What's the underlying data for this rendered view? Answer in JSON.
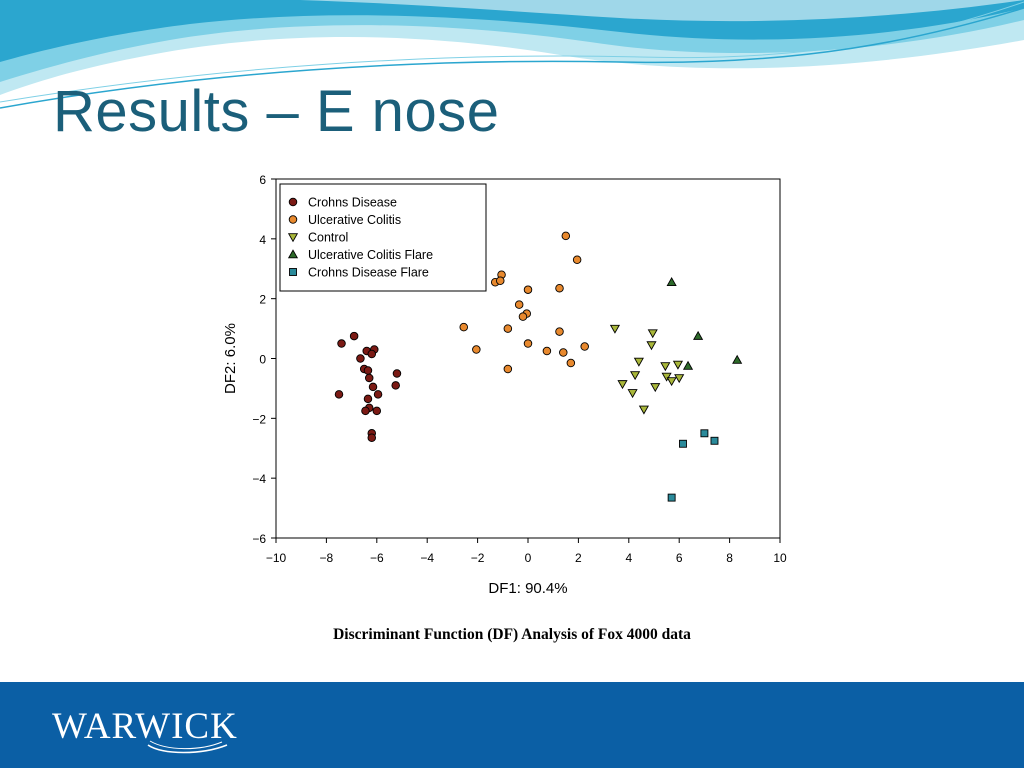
{
  "slide": {
    "title": "Results – E nose",
    "caption": "Discriminant Function (DF) Analysis of Fox 4000 data",
    "footer_logo_text": "WARWICK",
    "colors": {
      "title": "#1b5f7a",
      "footer": "#0b5fa5",
      "swoosh_light": "#bfe8f2",
      "swoosh_dark": "#2ba6cf"
    }
  },
  "chart_data": {
    "type": "scatter",
    "title": "",
    "xlabel": "DF1: 90.4%",
    "ylabel": "DF2: 6.0%",
    "xlim": [
      -10,
      10
    ],
    "ylim": [
      -6,
      6
    ],
    "xticks": [
      -10,
      -8,
      -6,
      -4,
      -2,
      0,
      2,
      4,
      6,
      8,
      10
    ],
    "yticks": [
      -6,
      -4,
      -2,
      0,
      2,
      4,
      6
    ],
    "grid": false,
    "legend_position": "top-left",
    "series": [
      {
        "name": "Crohns Disease",
        "marker": "circle",
        "color": "#7b1a14",
        "points": [
          [
            -7.4,
            0.5
          ],
          [
            -6.9,
            0.75
          ],
          [
            -6.4,
            0.25
          ],
          [
            -6.1,
            0.3
          ],
          [
            -6.2,
            0.15
          ],
          [
            -6.65,
            0.0
          ],
          [
            -6.5,
            -0.35
          ],
          [
            -6.35,
            -0.4
          ],
          [
            -6.3,
            -0.65
          ],
          [
            -6.15,
            -0.95
          ],
          [
            -5.2,
            -0.5
          ],
          [
            -5.25,
            -0.9
          ],
          [
            -7.5,
            -1.2
          ],
          [
            -5.95,
            -1.2
          ],
          [
            -6.35,
            -1.35
          ],
          [
            -6.3,
            -1.65
          ],
          [
            -6.45,
            -1.75
          ],
          [
            -6.0,
            -1.75
          ],
          [
            -6.2,
            -2.5
          ],
          [
            -6.2,
            -2.65
          ]
        ]
      },
      {
        "name": "Ulcerative Colitis",
        "marker": "circle",
        "color": "#e8892e",
        "points": [
          [
            1.5,
            4.1
          ],
          [
            1.95,
            3.3
          ],
          [
            -1.05,
            2.8
          ],
          [
            -1.3,
            2.55
          ],
          [
            -1.1,
            2.6
          ],
          [
            0.0,
            2.3
          ],
          [
            1.25,
            2.35
          ],
          [
            -0.35,
            1.8
          ],
          [
            -0.05,
            1.5
          ],
          [
            -0.2,
            1.4
          ],
          [
            -2.55,
            1.05
          ],
          [
            -0.8,
            1.0
          ],
          [
            1.25,
            0.9
          ],
          [
            0.0,
            0.5
          ],
          [
            -2.05,
            0.3
          ],
          [
            0.75,
            0.25
          ],
          [
            1.4,
            0.2
          ],
          [
            2.25,
            0.4
          ],
          [
            1.7,
            -0.15
          ],
          [
            -0.8,
            -0.35
          ]
        ]
      },
      {
        "name": "Control",
        "marker": "triangle-down",
        "color": "#a9b73a",
        "points": [
          [
            3.45,
            1.0
          ],
          [
            4.95,
            0.85
          ],
          [
            4.9,
            0.45
          ],
          [
            4.4,
            -0.1
          ],
          [
            5.45,
            -0.25
          ],
          [
            5.95,
            -0.2
          ],
          [
            5.5,
            -0.6
          ],
          [
            5.7,
            -0.75
          ],
          [
            6.0,
            -0.65
          ],
          [
            4.25,
            -0.55
          ],
          [
            3.75,
            -0.85
          ],
          [
            5.05,
            -0.95
          ],
          [
            4.15,
            -1.15
          ],
          [
            4.6,
            -1.7
          ]
        ]
      },
      {
        "name": "Ulcerative Colitis Flare",
        "marker": "triangle-up",
        "color": "#2d6a2a",
        "points": [
          [
            5.7,
            2.55
          ],
          [
            6.75,
            0.75
          ],
          [
            8.3,
            -0.05
          ],
          [
            6.35,
            -0.25
          ]
        ]
      },
      {
        "name": "Crohns Disease Flare",
        "marker": "square",
        "color": "#2a8a9a",
        "points": [
          [
            7.0,
            -2.5
          ],
          [
            7.4,
            -2.75
          ],
          [
            6.15,
            -2.85
          ],
          [
            5.7,
            -4.65
          ]
        ]
      }
    ]
  }
}
